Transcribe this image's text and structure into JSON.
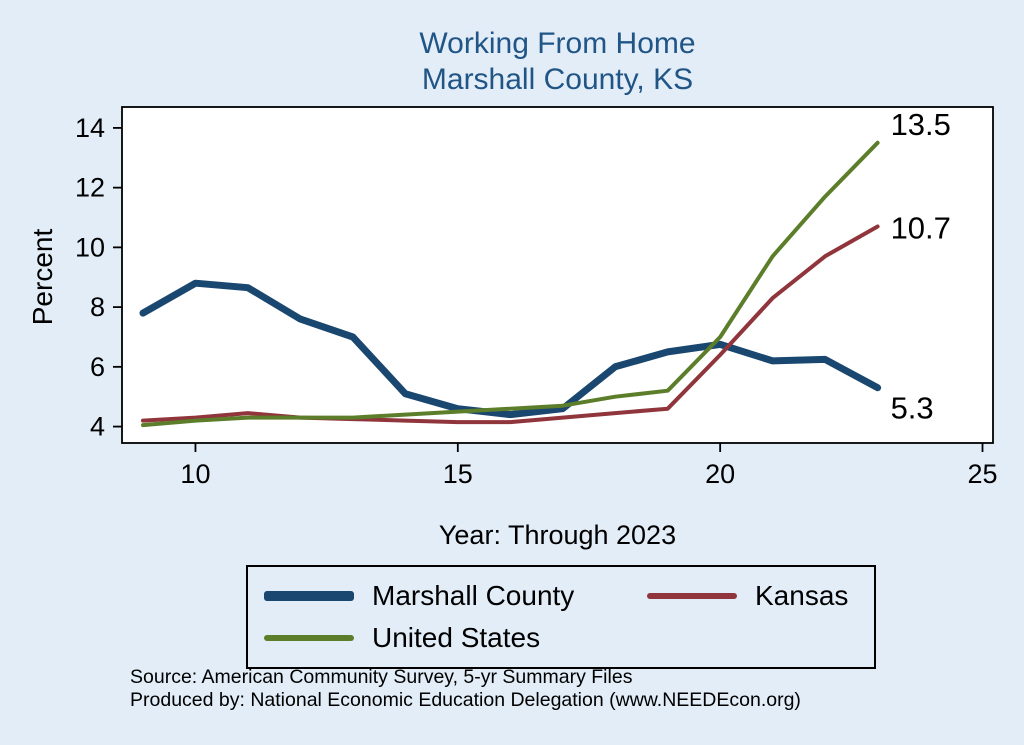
{
  "source": {
    "line1": "Source: American Community Survey, 5-yr Summary Files",
    "line2": "Produced by: National Economic Education Delegation (www.NEEDEcon.org)"
  },
  "colors": {
    "page_background": "#e2edf7",
    "plot_background": "#ffffff",
    "title_text": "#205586",
    "axis": "#000000"
  },
  "chart_data": {
    "type": "line",
    "title": "Working From Home",
    "subtitle": "Marshall County, KS",
    "xlabel": "Year: Through 2023",
    "ylabel": "Percent",
    "grid": false,
    "legend_position": "bottom",
    "x": [
      9,
      10,
      11,
      12,
      13,
      14,
      15,
      16,
      17,
      18,
      19,
      20,
      21,
      22,
      23
    ],
    "x_ticks": [
      10,
      15,
      20,
      25
    ],
    "y_ticks": [
      4,
      6,
      8,
      10,
      12,
      14
    ],
    "xlim": [
      8.6,
      25.2
    ],
    "ylim": [
      3.45,
      14.7
    ],
    "series": [
      {
        "name": "Marshall County",
        "color": "#1a476f",
        "line_width": 7,
        "end_label": "5.3",
        "end_label_dy": 21,
        "values": [
          7.8,
          8.8,
          8.65,
          7.6,
          7.0,
          5.1,
          4.6,
          4.4,
          4.6,
          6.0,
          6.5,
          6.75,
          6.2,
          6.25,
          5.3
        ]
      },
      {
        "name": "Kansas",
        "color": "#90353b",
        "line_width": 4,
        "end_label": "10.7",
        "end_label_dy": 2,
        "values": [
          4.2,
          4.3,
          4.45,
          4.3,
          4.25,
          4.2,
          4.15,
          4.15,
          4.3,
          4.45,
          4.6,
          6.4,
          8.3,
          9.7,
          10.7
        ]
      },
      {
        "name": "United States",
        "color": "#5c7e2a",
        "line_width": 4,
        "end_label": "13.5",
        "end_label_dy": -18,
        "values": [
          4.05,
          4.2,
          4.3,
          4.3,
          4.3,
          4.4,
          4.5,
          4.6,
          4.7,
          5.0,
          5.2,
          7.0,
          9.7,
          11.7,
          13.5
        ]
      }
    ]
  }
}
